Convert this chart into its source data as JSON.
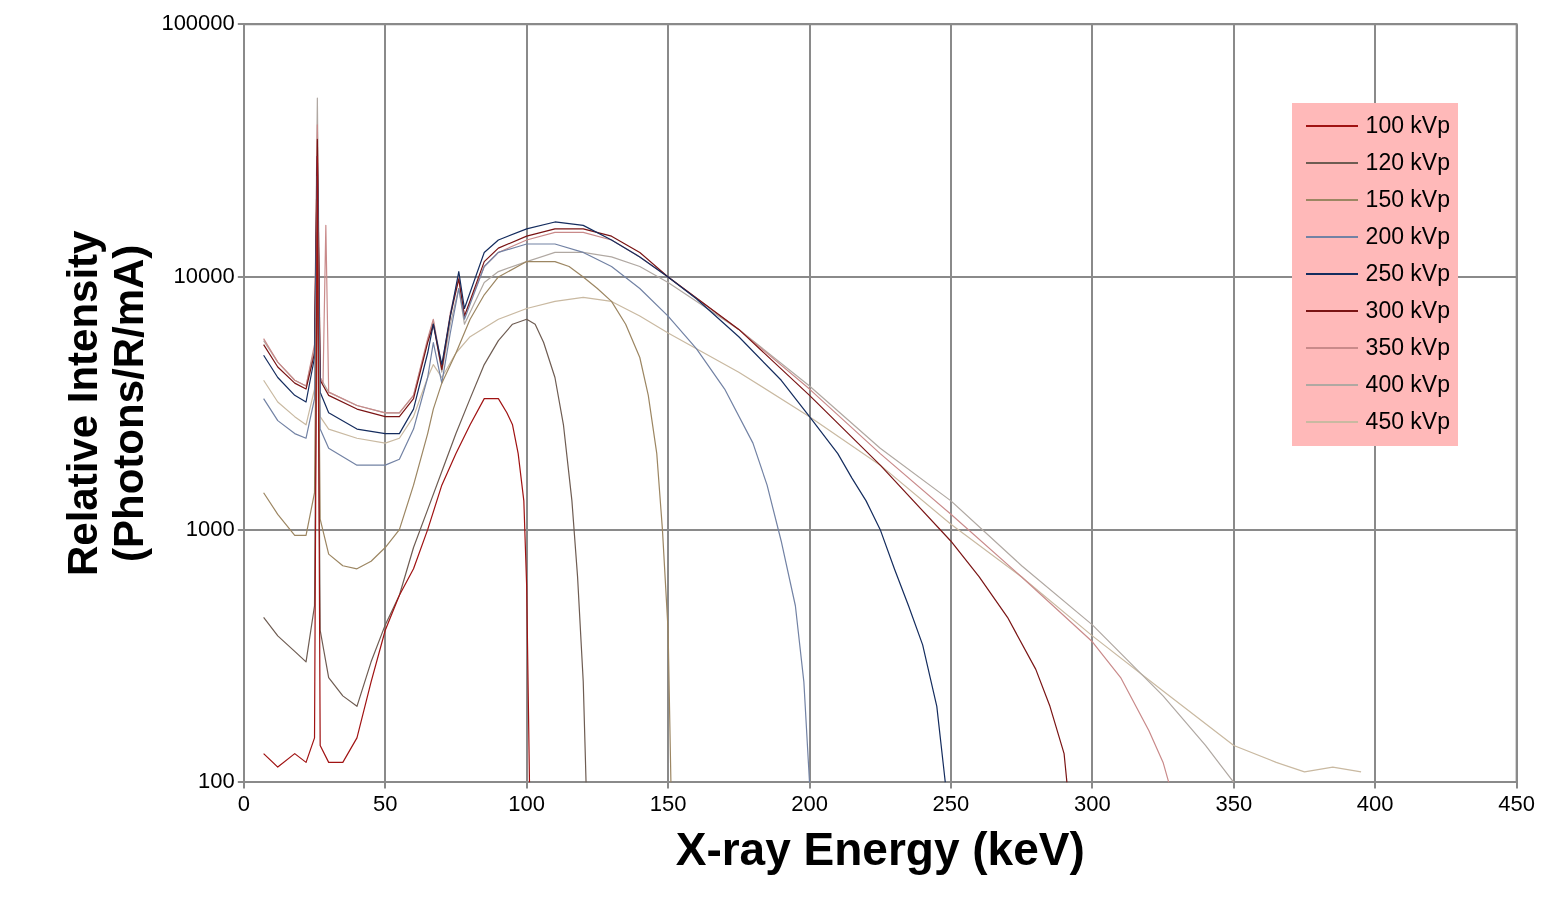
{
  "chart_data": {
    "type": "line",
    "xlabel": "X-ray Energy (keV)",
    "ylabel": "Relative Intensity (Photons/R/mA)",
    "log": "y",
    "grid": true,
    "legend": "top right",
    "marker": "none",
    "line_style": "solid",
    "xlim": [
      0,
      450
    ],
    "xticks": [
      0,
      50,
      100,
      150,
      200,
      250,
      300,
      350,
      400,
      450
    ],
    "ylim": [
      100,
      100000
    ],
    "yticks": [
      100,
      1000,
      10000,
      100000
    ],
    "series": [
      {
        "name": "100 kVp",
        "color": "#a01212",
        "x": [
          7,
          12,
          18,
          22,
          25,
          26,
          27,
          30,
          35,
          40,
          45,
          50,
          55,
          60,
          65,
          70,
          75,
          80,
          85,
          90,
          93,
          95,
          97,
          99,
          100,
          101
        ],
        "values": [
          130,
          115,
          130,
          120,
          150,
          30000,
          140,
          120,
          120,
          150,
          250,
          400,
          550,
          700,
          1000,
          1500,
          2000,
          2600,
          3300,
          3300,
          2900,
          2600,
          2000,
          1300,
          600,
          100
        ]
      },
      {
        "name": "120 kVp",
        "color": "#6e5c52",
        "x": [
          7,
          12,
          18,
          22,
          25,
          26,
          27,
          30,
          35,
          40,
          45,
          50,
          55,
          60,
          65,
          70,
          75,
          80,
          85,
          90,
          95,
          100,
          103,
          106,
          110,
          113,
          116,
          118,
          120,
          121
        ],
        "values": [
          450,
          380,
          330,
          300,
          500,
          15000,
          400,
          260,
          220,
          200,
          300,
          420,
          550,
          850,
          1200,
          1700,
          2400,
          3300,
          4500,
          5600,
          6500,
          6800,
          6500,
          5500,
          4000,
          2600,
          1300,
          650,
          250,
          100
        ]
      },
      {
        "name": "150 kVp",
        "color": "#9c8662",
        "x": [
          7,
          12,
          18,
          22,
          25,
          26,
          27,
          30,
          35,
          40,
          45,
          50,
          55,
          60,
          65,
          67,
          70,
          75,
          80,
          85,
          90,
          100,
          110,
          115,
          120,
          125,
          130,
          135,
          140,
          143,
          146,
          148,
          150,
          151
        ],
        "values": [
          1400,
          1150,
          950,
          950,
          1400,
          20000,
          1100,
          800,
          720,
          700,
          750,
          850,
          1000,
          1500,
          2400,
          3000,
          3800,
          5000,
          6800,
          8500,
          10000,
          11500,
          11500,
          11000,
          10000,
          9000,
          8000,
          6500,
          4800,
          3400,
          2000,
          1000,
          400,
          100
        ]
      },
      {
        "name": "200 kVp",
        "color": "#7282a4",
        "x": [
          7,
          12,
          18,
          22,
          25,
          26,
          27,
          30,
          40,
          50,
          55,
          60,
          65,
          67,
          70,
          73,
          76,
          78,
          85,
          90,
          100,
          110,
          120,
          130,
          140,
          150,
          160,
          170,
          180,
          185,
          190,
          195,
          198,
          200
        ],
        "values": [
          3300,
          2700,
          2400,
          2300,
          3300,
          25000,
          2500,
          2100,
          1800,
          1800,
          1900,
          2500,
          4000,
          5500,
          3800,
          6000,
          9000,
          6800,
          11000,
          12500,
          13500,
          13500,
          12500,
          11000,
          9000,
          7000,
          5200,
          3600,
          2200,
          1500,
          900,
          500,
          250,
          100
        ]
      },
      {
        "name": "250 kVp",
        "color": "#142c5e",
        "x": [
          7,
          12,
          18,
          22,
          25,
          26,
          27,
          30,
          40,
          50,
          55,
          60,
          65,
          67,
          70,
          73,
          76,
          78,
          85,
          90,
          100,
          110,
          120,
          130,
          140,
          150,
          160,
          175,
          190,
          200,
          210,
          215,
          220,
          225,
          230,
          235,
          240,
          245,
          248
        ],
        "values": [
          4900,
          4000,
          3400,
          3200,
          4800,
          30000,
          3500,
          2900,
          2500,
          2400,
          2400,
          3000,
          5000,
          6500,
          4500,
          7000,
          10500,
          7500,
          12500,
          14000,
          15500,
          16500,
          16000,
          14000,
          12000,
          10000,
          8200,
          5800,
          3900,
          2800,
          2000,
          1600,
          1300,
          1000,
          700,
          500,
          350,
          200,
          100
        ]
      },
      {
        "name": "300 kVp",
        "color": "#7a1414",
        "x": [
          7,
          12,
          18,
          22,
          25,
          26,
          27,
          30,
          40,
          50,
          55,
          60,
          65,
          67,
          70,
          73,
          76,
          78,
          85,
          90,
          100,
          110,
          120,
          130,
          140,
          150,
          175,
          200,
          225,
          250,
          260,
          270,
          280,
          285,
          290,
          291
        ],
        "values": [
          5400,
          4400,
          3800,
          3600,
          5000,
          35000,
          3900,
          3400,
          3000,
          2800,
          2800,
          3300,
          5500,
          6500,
          4300,
          7000,
          9800,
          7000,
          11500,
          13000,
          14500,
          15500,
          15500,
          14500,
          12500,
          10000,
          6200,
          3400,
          1800,
          900,
          650,
          450,
          280,
          200,
          130,
          100
        ]
      },
      {
        "name": "350 kVp",
        "color": "#c98a8a",
        "x": [
          7,
          12,
          18,
          22,
          25,
          26,
          27,
          28,
          29,
          30,
          40,
          50,
          55,
          60,
          65,
          67,
          70,
          73,
          76,
          78,
          85,
          90,
          100,
          110,
          120,
          130,
          140,
          150,
          175,
          200,
          225,
          250,
          275,
          300,
          310,
          320,
          325,
          327
        ],
        "values": [
          5700,
          4600,
          3900,
          3700,
          5400,
          40000,
          4000,
          3800,
          16000,
          3500,
          3100,
          2900,
          2900,
          3400,
          5700,
          6800,
          4400,
          7200,
          10000,
          7000,
          11000,
          12500,
          14000,
          15000,
          15000,
          14000,
          12000,
          10000,
          6200,
          3600,
          2000,
          1150,
          650,
          360,
          260,
          160,
          120,
          100
        ]
      },
      {
        "name": "400 kVp",
        "color": "#b0a8a2",
        "x": [
          7,
          12,
          18,
          22,
          25,
          26,
          27,
          30,
          40,
          50,
          55,
          60,
          65,
          67,
          70,
          73,
          76,
          78,
          85,
          90,
          100,
          110,
          120,
          130,
          140,
          150,
          175,
          200,
          225,
          250,
          275,
          300,
          325,
          340,
          350
        ],
        "values": [
          5600,
          4600,
          3900,
          3700,
          5200,
          51000,
          4000,
          3500,
          3100,
          2900,
          2900,
          3400,
          5600,
          6700,
          4200,
          6500,
          9000,
          6500,
          9500,
          10500,
          11500,
          12500,
          12500,
          12000,
          11000,
          9500,
          6200,
          3700,
          2100,
          1300,
          720,
          420,
          220,
          140,
          100
        ]
      },
      {
        "name": "450 kVp",
        "color": "#c9b9a1",
        "x": [
          7,
          12,
          18,
          22,
          25,
          26,
          27,
          30,
          40,
          50,
          55,
          60,
          65,
          67,
          70,
          75,
          80,
          90,
          100,
          110,
          120,
          130,
          140,
          150,
          175,
          200,
          225,
          250,
          275,
          300,
          325,
          350,
          365,
          375,
          385,
          395
        ],
        "values": [
          3900,
          3200,
          2800,
          2600,
          3600,
          20000,
          2800,
          2500,
          2300,
          2200,
          2300,
          2800,
          4000,
          4500,
          4000,
          5000,
          5800,
          6800,
          7500,
          8000,
          8300,
          8000,
          7000,
          6000,
          4200,
          2800,
          1800,
          1050,
          650,
          380,
          230,
          140,
          120,
          110,
          115,
          110
        ]
      }
    ]
  }
}
